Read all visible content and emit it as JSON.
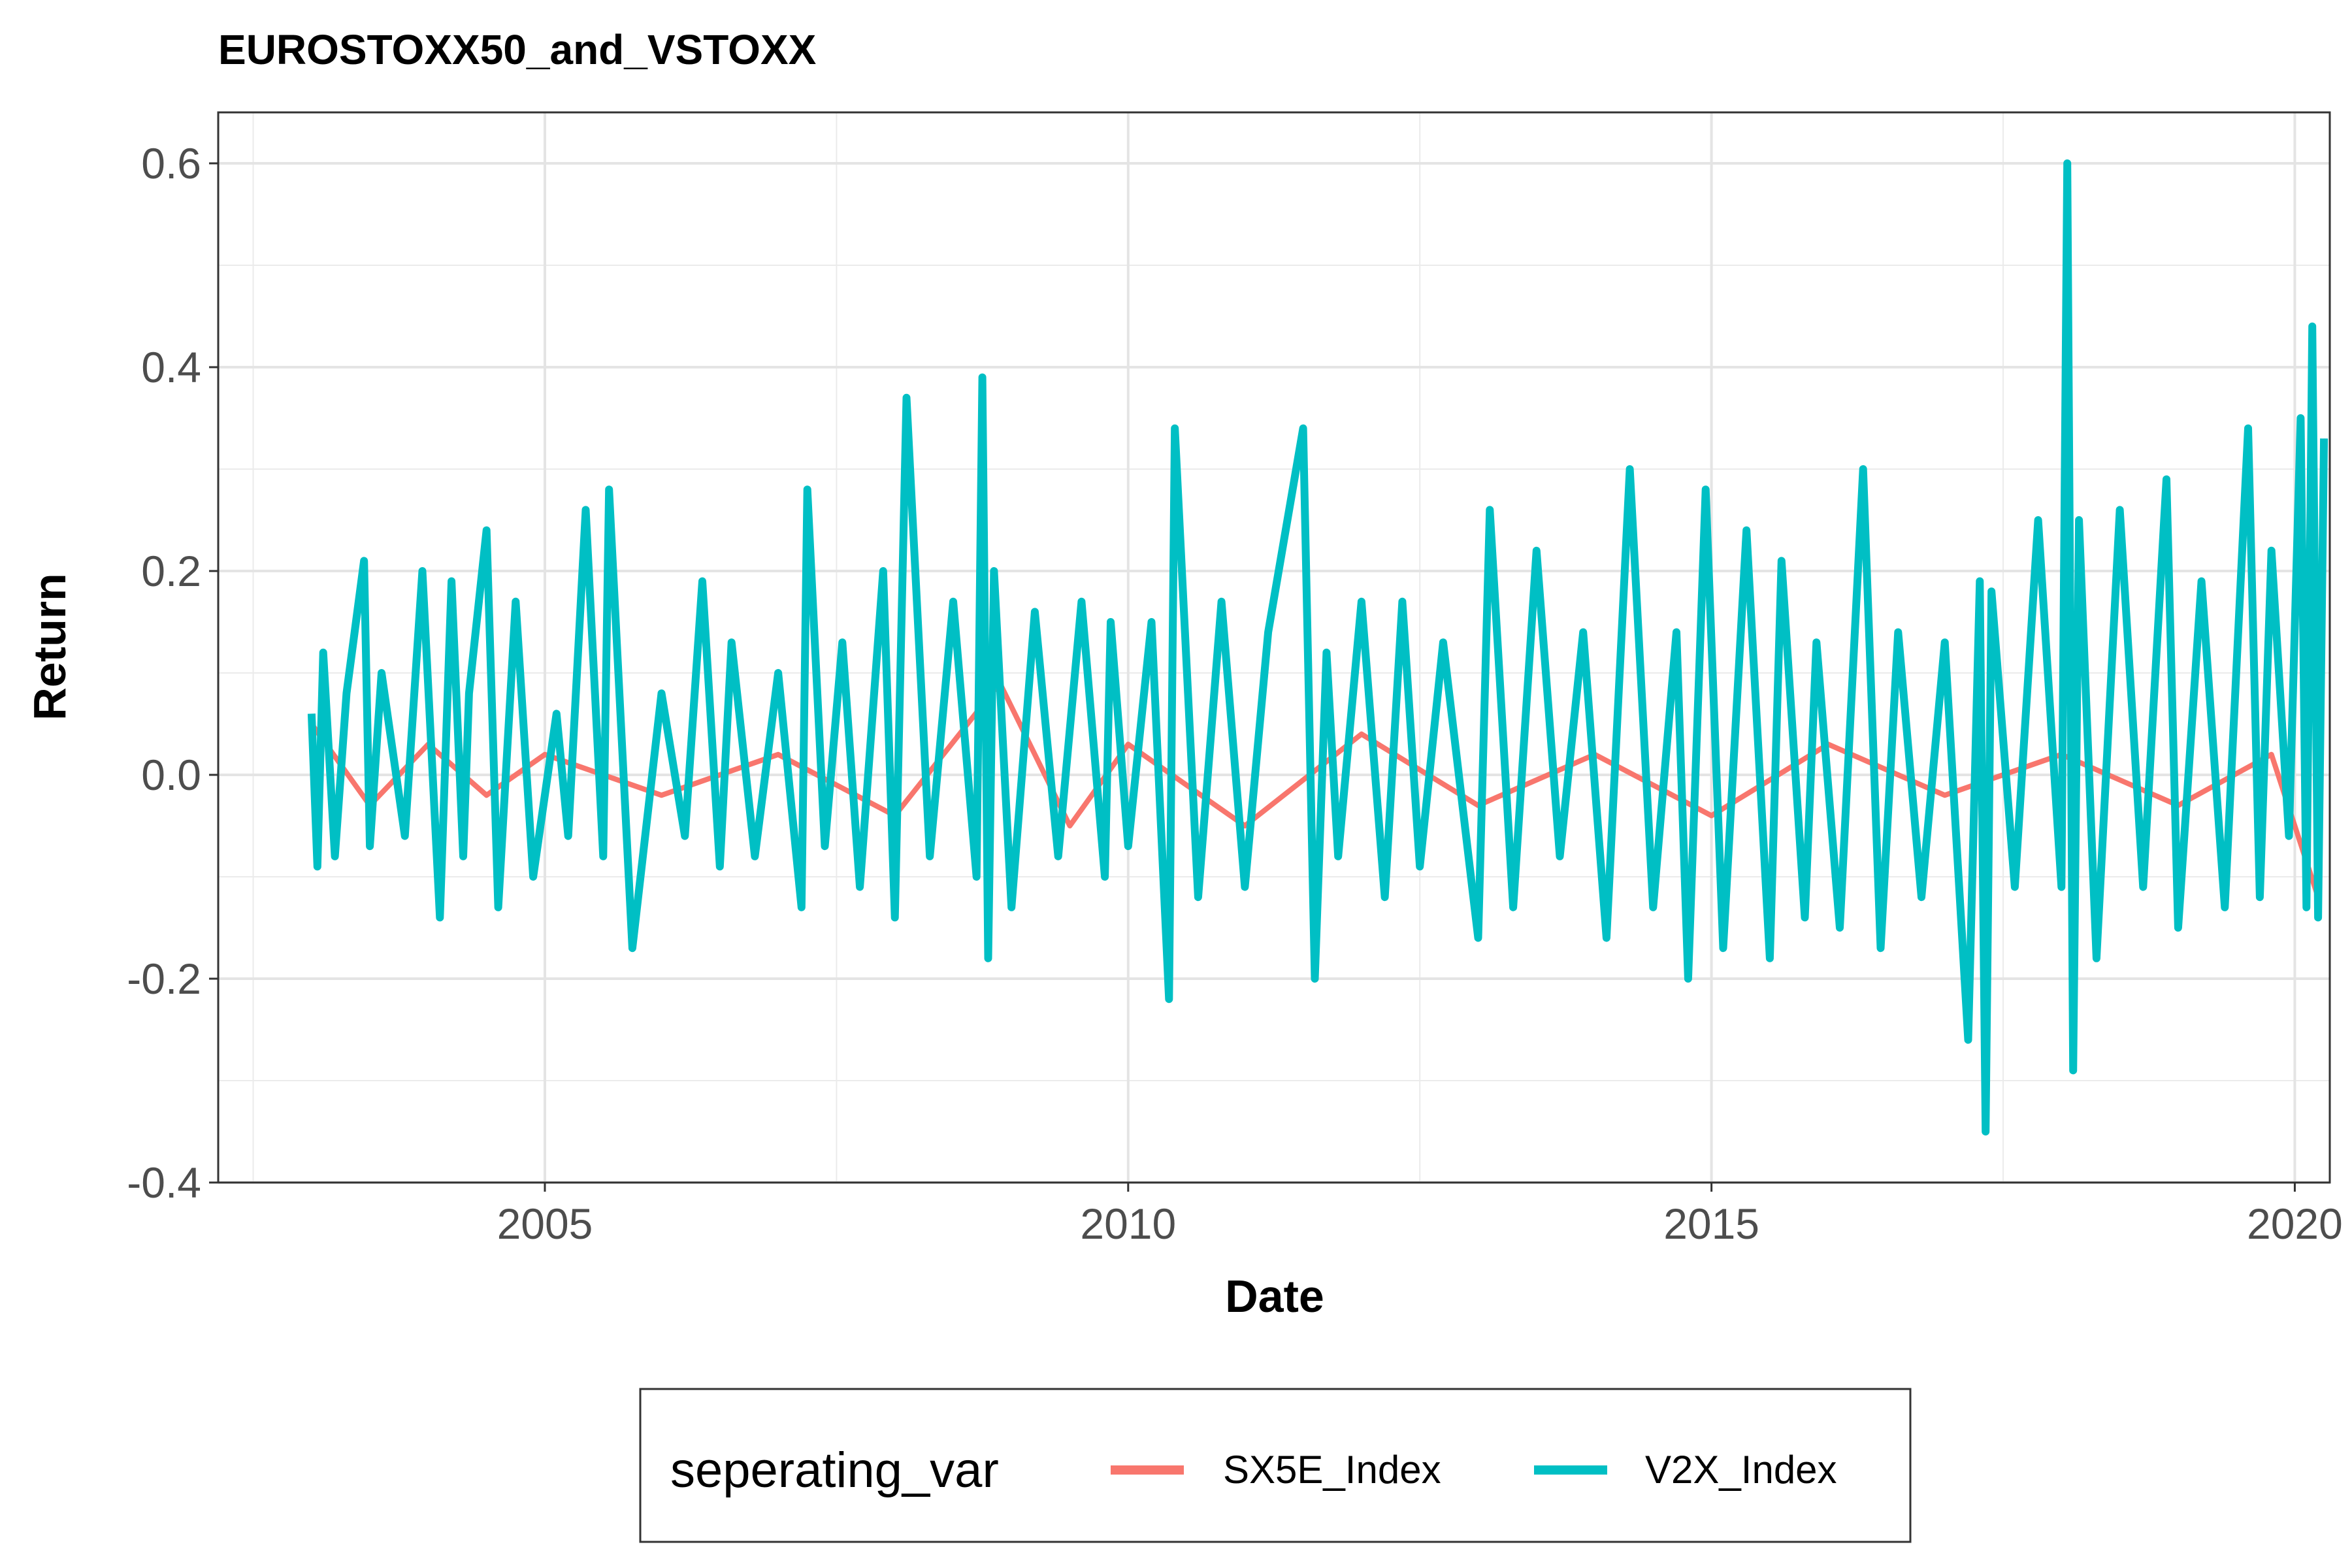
{
  "chart_data": {
    "type": "line",
    "title": "EUROSTOXX50_and_VSTOXX",
    "xlabel": "Date",
    "ylabel": "Return",
    "xlim": [
      2002.2,
      2020.3
    ],
    "ylim": [
      -0.4,
      0.65
    ],
    "x_ticks": [
      2005,
      2010,
      2015,
      2020
    ],
    "x_tick_labels": [
      "2005",
      "2010",
      "2015",
      "2020"
    ],
    "y_ticks": [
      -0.4,
      -0.2,
      0.0,
      0.2,
      0.4,
      0.6
    ],
    "y_tick_labels": [
      "-0.4",
      "-0.2",
      "0.0",
      "0.2",
      "0.4",
      "0.6"
    ],
    "grid": true,
    "legend": {
      "title": "seperating_var",
      "position": "bottom"
    },
    "series": [
      {
        "name": "SX5E_Index",
        "color": "#F8766D",
        "x": [
          2003.0,
          2003.5,
          2004.0,
          2004.5,
          2005.0,
          2006.0,
          2007.0,
          2008.0,
          2008.9,
          2009.5,
          2010.0,
          2011.0,
          2012.0,
          2013.0,
          2014.0,
          2015.0,
          2016.0,
          2017.0,
          2018.0,
          2019.0,
          2019.8,
          2020.2
        ],
        "y": [
          0.05,
          -0.03,
          0.03,
          -0.02,
          0.02,
          -0.02,
          0.02,
          -0.04,
          0.09,
          -0.05,
          0.03,
          -0.05,
          0.04,
          -0.03,
          0.02,
          -0.04,
          0.03,
          -0.02,
          0.02,
          -0.03,
          0.02,
          -0.12
        ]
      },
      {
        "name": "V2X_Index",
        "color": "#00BFC4",
        "x": [
          2003.0,
          2003.05,
          2003.1,
          2003.2,
          2003.3,
          2003.45,
          2003.5,
          2003.6,
          2003.8,
          2003.95,
          2004.1,
          2004.2,
          2004.3,
          2004.35,
          2004.5,
          2004.6,
          2004.75,
          2004.9,
          2005.1,
          2005.2,
          2005.35,
          2005.5,
          2005.55,
          2005.75,
          2006.0,
          2006.2,
          2006.35,
          2006.5,
          2006.6,
          2006.8,
          2007.0,
          2007.2,
          2007.25,
          2007.4,
          2007.55,
          2007.7,
          2007.9,
          2008.0,
          2008.1,
          2008.3,
          2008.5,
          2008.7,
          2008.75,
          2008.8,
          2008.85,
          2009.0,
          2009.2,
          2009.4,
          2009.6,
          2009.8,
          2009.85,
          2010.0,
          2010.2,
          2010.35,
          2010.4,
          2010.6,
          2010.8,
          2011.0,
          2011.2,
          2011.5,
          2011.6,
          2011.7,
          2011.8,
          2012.0,
          2012.2,
          2012.35,
          2012.5,
          2012.7,
          2013.0,
          2013.1,
          2013.3,
          2013.5,
          2013.7,
          2013.9,
          2014.1,
          2014.3,
          2014.5,
          2014.7,
          2014.8,
          2014.95,
          2015.1,
          2015.3,
          2015.5,
          2015.6,
          2015.8,
          2015.9,
          2016.1,
          2016.3,
          2016.45,
          2016.6,
          2016.8,
          2017.0,
          2017.2,
          2017.3,
          2017.35,
          2017.4,
          2017.6,
          2017.8,
          2018.0,
          2018.05,
          2018.1,
          2018.15,
          2018.3,
          2018.5,
          2018.7,
          2018.9,
          2019.0,
          2019.2,
          2019.4,
          2019.6,
          2019.7,
          2019.8,
          2019.95,
          2020.05,
          2020.1,
          2020.15,
          2020.2,
          2020.25
        ],
        "y": [
          0.06,
          -0.09,
          0.12,
          -0.08,
          0.08,
          0.21,
          -0.07,
          0.1,
          -0.06,
          0.2,
          -0.14,
          0.19,
          -0.08,
          0.08,
          0.24,
          -0.13,
          0.17,
          -0.1,
          0.06,
          -0.06,
          0.26,
          -0.08,
          0.28,
          -0.17,
          0.08,
          -0.06,
          0.19,
          -0.09,
          0.13,
          -0.08,
          0.1,
          -0.13,
          0.28,
          -0.07,
          0.13,
          -0.11,
          0.2,
          -0.14,
          0.37,
          -0.08,
          0.17,
          -0.1,
          0.39,
          -0.18,
          0.2,
          -0.13,
          0.16,
          -0.08,
          0.17,
          -0.1,
          0.15,
          -0.07,
          0.15,
          -0.22,
          0.34,
          -0.12,
          0.17,
          -0.11,
          0.14,
          0.34,
          -0.2,
          0.12,
          -0.08,
          0.17,
          -0.12,
          0.17,
          -0.09,
          0.13,
          -0.16,
          0.26,
          -0.13,
          0.22,
          -0.08,
          0.14,
          -0.16,
          0.3,
          -0.13,
          0.14,
          -0.2,
          0.28,
          -0.17,
          0.24,
          -0.18,
          0.21,
          -0.14,
          0.13,
          -0.15,
          0.3,
          -0.17,
          0.14,
          -0.12,
          0.13,
          -0.26,
          0.19,
          -0.35,
          0.18,
          -0.11,
          0.25,
          -0.11,
          0.6,
          -0.29,
          0.25,
          -0.18,
          0.26,
          -0.11,
          0.29,
          -0.15,
          0.19,
          -0.13,
          0.34,
          -0.12,
          0.22,
          -0.06,
          0.35,
          -0.13,
          0.44,
          -0.14,
          0.33
        ]
      }
    ]
  }
}
